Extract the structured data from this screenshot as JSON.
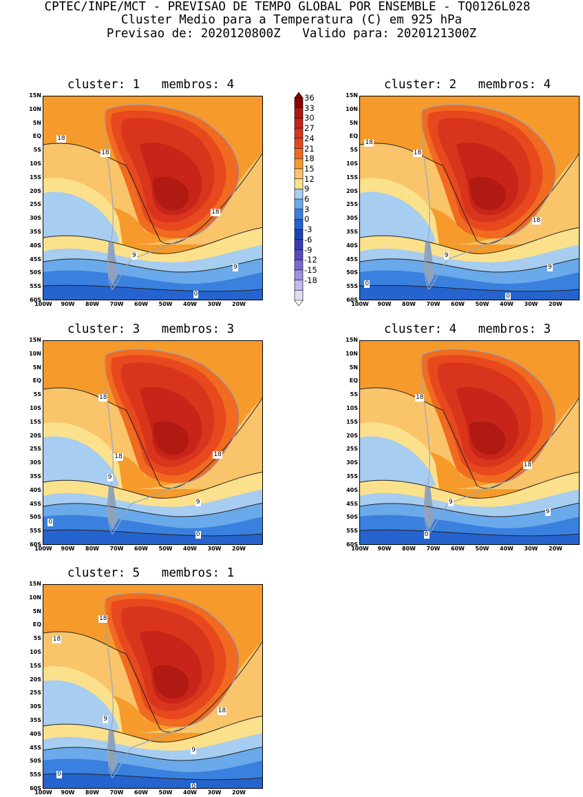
{
  "header": {
    "line1": "CPTEC/INPE/MCT - PREVISAO DE TEMPO GLOBAL POR ENSEMBLE - TQ0126L028",
    "line2": "Cluster Medio para a Temperatura (C) em 925 hPa",
    "line3": "Previsao de: 2020120800Z   Valido para: 2020121300Z"
  },
  "axes": {
    "lat_labels": [
      "15N",
      "10N",
      "5N",
      "EQ",
      "5S",
      "10S",
      "15S",
      "20S",
      "25S",
      "30S",
      "35S",
      "40S",
      "45S",
      "50S",
      "55S",
      "60S"
    ],
    "lon_labels": [
      "100W",
      "90W",
      "80W",
      "70W",
      "60W",
      "50W",
      "40W",
      "30W",
      "20W"
    ]
  },
  "colorbar": {
    "labels": [
      "36",
      "33",
      "30",
      "27",
      "24",
      "21",
      "18",
      "15",
      "12",
      "9",
      "6",
      "3",
      "0",
      "-3",
      "-6",
      "-9",
      "-12",
      "-15",
      "-18"
    ],
    "colors": [
      "#8b0000",
      "#b01a12",
      "#c8241a",
      "#d8351c",
      "#e8481e",
      "#f06a20",
      "#f59a2b",
      "#f9c46a",
      "#fbe18c",
      "#a7cdf0",
      "#6aa9ea",
      "#3a80de",
      "#2563cf",
      "#1a44b8",
      "#3b3bb7",
      "#5a4ac0",
      "#7b6ad1",
      "#a090e0",
      "#c4b8ee",
      "#e4dcf7"
    ]
  },
  "panels": [
    {
      "title": "cluster: 1   membros: 4",
      "contour_labels": [
        "18",
        "18",
        "18",
        "9",
        "9",
        "0"
      ]
    },
    {
      "title": "cluster: 2   membros: 4",
      "contour_labels": [
        "18",
        "18",
        "18",
        "9",
        "9",
        "0",
        "0"
      ]
    },
    {
      "title": "cluster: 3   membros: 3",
      "contour_labels": [
        "18",
        "18",
        "18",
        "9",
        "9",
        "0",
        "0"
      ]
    },
    {
      "title": "cluster: 4   membros: 3",
      "contour_labels": [
        "18",
        "18",
        "9",
        "9",
        "0"
      ]
    },
    {
      "title": "cluster: 5   membros: 1",
      "contour_labels": [
        "18",
        "18",
        "18",
        "9",
        "9",
        "0",
        "0"
      ]
    }
  ]
}
